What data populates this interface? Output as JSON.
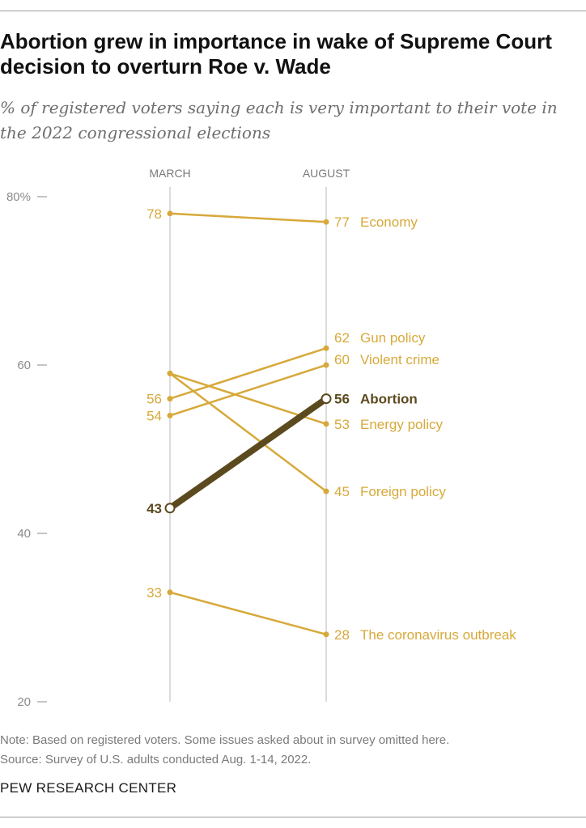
{
  "title": "Abortion grew in importance in wake of Supreme Court decision to overturn Roe v. Wade",
  "subtitle": "% of registered voters saying each is very important to their vote in the 2022 congressional elections",
  "note": "Note: Based on registered voters. Some issues asked about in survey omitted here.",
  "source": "Source: Survey of U.S. adults conducted Aug. 1-14, 2022.",
  "footer": "PEW RESEARCH CENTER",
  "colors": {
    "accent": "#d7a93a",
    "highlight": "#5c4a1f",
    "axis": "#d0d0d0",
    "tick": "#8a8a8a"
  },
  "chart_data": {
    "type": "slope",
    "categories": [
      "MARCH",
      "AUGUST"
    ],
    "ylim": [
      20,
      80
    ],
    "yticks": [
      "80%",
      "60",
      "40",
      "20"
    ],
    "yticks_values": [
      80,
      60,
      40,
      20
    ],
    "series": [
      {
        "name": "Economy",
        "values": [
          78,
          77
        ],
        "start_label": "78",
        "end_label": "77",
        "highlight": false
      },
      {
        "name": "Gun policy",
        "values": [
          56,
          62
        ],
        "start_label": "56",
        "end_label": "62",
        "highlight": false
      },
      {
        "name": "Violent crime",
        "values": [
          54,
          60
        ],
        "start_label": "54",
        "end_label": "60",
        "highlight": false
      },
      {
        "name": "Abortion",
        "values": [
          43,
          56
        ],
        "start_label": "43",
        "end_label": "56",
        "highlight": true
      },
      {
        "name": "Energy policy",
        "values": [
          59,
          53
        ],
        "start_label": "",
        "end_label": "53",
        "highlight": false
      },
      {
        "name": "Foreign policy",
        "values": [
          59,
          45
        ],
        "start_label": "",
        "end_label": "45",
        "highlight": false
      },
      {
        "name": "The coronavirus outbreak",
        "values": [
          33,
          28
        ],
        "start_label": "33",
        "end_label": "28",
        "highlight": false
      }
    ]
  }
}
